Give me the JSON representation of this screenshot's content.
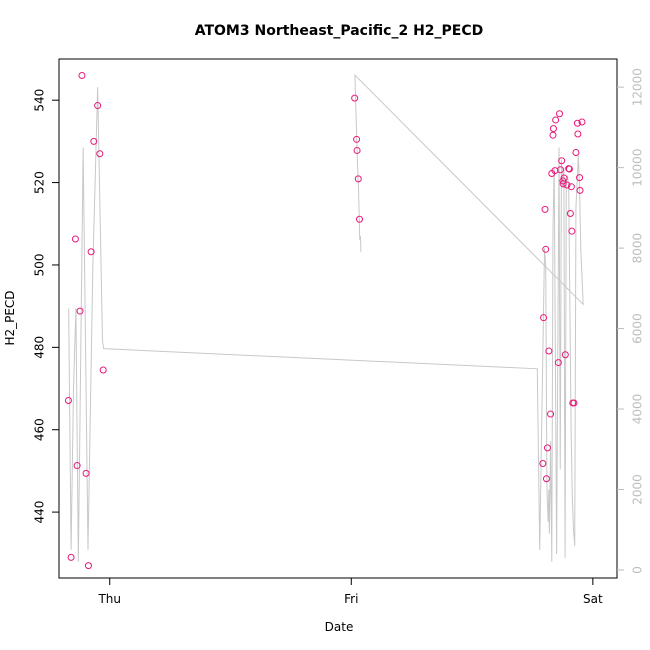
{
  "chart_data": {
    "type": "scatter",
    "title": "ATOM3 Northeast_Pacific_2 H2_PECD",
    "xlabel": "Date",
    "ylabel": "H2_PECD",
    "xlim": [
      -0.21,
      2.1
    ],
    "ylim": [
      424,
      550
    ],
    "y2lim": [
      -200,
      12700
    ],
    "x_ticks": [
      {
        "label": "Thu",
        "value": 0
      },
      {
        "label": "Fri",
        "value": 1
      },
      {
        "label": "Sat",
        "value": 2
      }
    ],
    "y_ticks": [
      440,
      460,
      480,
      500,
      520,
      540
    ],
    "y2_ticks": [
      0,
      2000,
      4000,
      6000,
      8000,
      10000,
      12000
    ],
    "colors": {
      "points": "#e8197a",
      "line": "#c8c8c8",
      "axis": "#000000",
      "axis2": "#bdbdbd"
    },
    "series": [
      {
        "type": "scatter",
        "axis": "left",
        "points": [
          [
            -0.171,
            467.1
          ],
          [
            -0.16,
            429
          ],
          [
            -0.135,
            451.3
          ],
          [
            -0.123,
            488.8
          ],
          [
            -0.115,
            546
          ],
          [
            -0.098,
            449.4
          ],
          [
            -0.088,
            427
          ],
          [
            -0.077,
            503.2
          ],
          [
            -0.066,
            530
          ],
          [
            -0.05,
            538.7
          ],
          [
            -0.041,
            527
          ],
          [
            -0.027,
            474.5
          ],
          [
            -0.142,
            506.3
          ],
          [
            1.014,
            540.5
          ],
          [
            1.022,
            530.5
          ],
          [
            1.024,
            527.8
          ],
          [
            1.029,
            520.9
          ],
          [
            1.034,
            511.1
          ],
          [
            1.796,
            487.2
          ],
          [
            1.793,
            451.8
          ],
          [
            1.802,
            513.5
          ],
          [
            1.805,
            503.8
          ],
          [
            1.808,
            448.1
          ],
          [
            1.812,
            455.6
          ],
          [
            1.818,
            479.1
          ],
          [
            1.825,
            463.8
          ],
          [
            1.83,
            522.2
          ],
          [
            1.835,
            531.5
          ],
          [
            1.837,
            533.1
          ],
          [
            1.843,
            522.9
          ],
          [
            1.846,
            535.2
          ],
          [
            1.857,
            476.3
          ],
          [
            1.862,
            536.7
          ],
          [
            1.866,
            523.1
          ],
          [
            1.871,
            525.3
          ],
          [
            1.876,
            520.4
          ],
          [
            1.877,
            519.7
          ],
          [
            1.881,
            521.1
          ],
          [
            1.886,
            478.2
          ],
          [
            1.893,
            519.4
          ],
          [
            1.9,
            523.4
          ],
          [
            1.903,
            523.3
          ],
          [
            1.907,
            512.5
          ],
          [
            1.913,
            508.2
          ],
          [
            1.911,
            519
          ],
          [
            1.917,
            466.5
          ],
          [
            1.922,
            466.5
          ],
          [
            1.93,
            527.3
          ],
          [
            1.936,
            534.4
          ],
          [
            1.938,
            531.8
          ],
          [
            1.945,
            521.2
          ],
          [
            1.947,
            518.1
          ],
          [
            1.955,
            534.7
          ]
        ]
      },
      {
        "type": "line",
        "axis": "right",
        "points": [
          [
            -0.17,
            6500
          ],
          [
            -0.16,
            500
          ],
          [
            -0.15,
            4500
          ],
          [
            -0.14,
            6500
          ],
          [
            -0.13,
            200
          ],
          [
            -0.11,
            10500
          ],
          [
            -0.09,
            500
          ],
          [
            -0.07,
            7500
          ],
          [
            -0.05,
            12000
          ],
          [
            -0.03,
            5700
          ],
          [
            -0.025,
            5500
          ],
          [
            1.77,
            5000
          ],
          [
            1.78,
            500
          ],
          [
            1.8,
            8000
          ],
          [
            1.805,
            7500
          ],
          [
            1.81,
            2000
          ],
          [
            1.815,
            1200
          ],
          [
            1.818,
            2000
          ],
          [
            1.82,
            900
          ],
          [
            1.825,
            3200
          ],
          [
            1.83,
            200
          ],
          [
            1.835,
            8500
          ],
          [
            1.84,
            10000
          ],
          [
            1.85,
            400
          ],
          [
            1.86,
            10500
          ],
          [
            1.865,
            2500
          ],
          [
            1.87,
            10200
          ],
          [
            1.875,
            9500
          ],
          [
            1.88,
            10000
          ],
          [
            1.885,
            300
          ],
          [
            1.89,
            9600
          ],
          [
            1.895,
            9800
          ],
          [
            1.9,
            9500
          ],
          [
            1.91,
            3500
          ],
          [
            1.915,
            1800
          ],
          [
            1.92,
            1000
          ],
          [
            1.925,
            600
          ],
          [
            1.93,
            9000
          ],
          [
            1.94,
            10300
          ],
          [
            1.945,
            9500
          ],
          [
            1.95,
            8000
          ],
          [
            1.96,
            6600
          ],
          [
            1.015,
            12300
          ],
          [
            1.025,
            10200
          ],
          [
            1.03,
            9500
          ],
          [
            1.035,
            8200
          ],
          [
            1.038,
            8300
          ],
          [
            1.04,
            7900
          ]
        ]
      }
    ]
  }
}
